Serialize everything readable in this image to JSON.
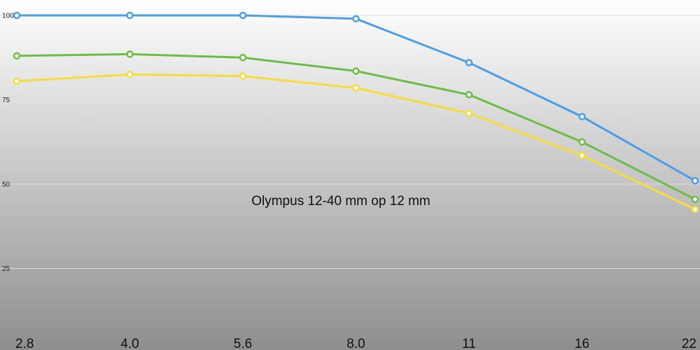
{
  "chart_data": {
    "type": "line",
    "title": "Olympus 12-40 mm op 12 mm",
    "xlabel": "",
    "ylabel": "",
    "categories": [
      "2.8",
      "4.0",
      "5.6",
      "8.0",
      "11",
      "16",
      "22"
    ],
    "ylim": [
      0,
      100
    ],
    "yticks": [
      100,
      75,
      50,
      25
    ],
    "grid": true,
    "legend": "none",
    "series": [
      {
        "color": "#4a9fe8",
        "values": [
          100,
          100,
          100,
          99,
          86,
          70,
          51
        ]
      },
      {
        "color": "#6cbd45",
        "values": [
          88,
          88.5,
          87.5,
          83.5,
          76.5,
          62.5,
          45.5
        ]
      },
      {
        "color": "#f4dc3c",
        "values": [
          80.5,
          82.5,
          82,
          78.5,
          71,
          58.5,
          42.5
        ]
      }
    ]
  },
  "colors": {
    "background_top": "#ffffff",
    "background_bottom": "#8e8e8e",
    "gridline": "#dddddd",
    "marker_fill": "#ffffff"
  }
}
